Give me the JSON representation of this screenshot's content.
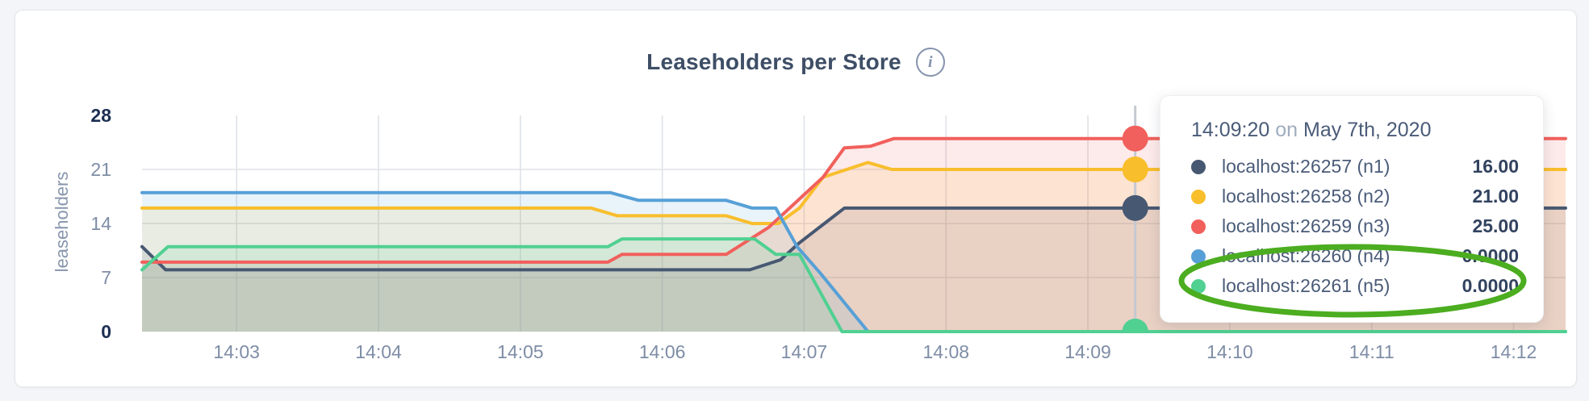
{
  "header": {
    "title": "Leaseholders per Store",
    "info_icon": "i"
  },
  "chart_data": {
    "type": "area",
    "title": "Leaseholders per Store",
    "xlabel": "",
    "ylabel": "leaseholders",
    "ylim": [
      0,
      28
    ],
    "y_ticks": [
      0,
      7,
      14,
      21,
      28
    ],
    "x_ticks": [
      "14:03",
      "14:04",
      "14:05",
      "14:06",
      "14:07",
      "14:08",
      "14:09",
      "14:10",
      "14:11",
      "14:12"
    ],
    "x_range": [
      "14:02:20",
      "14:12:22"
    ],
    "grid": true,
    "legend_position": "tooltip-right",
    "series": [
      {
        "name": "localhost:26257 (n1)",
        "short": "n1",
        "color": "#475872",
        "points": [
          [
            "14:02:20",
            11
          ],
          [
            "14:02:30",
            8
          ],
          [
            "14:06:37",
            8
          ],
          [
            "14:06:50",
            9.3
          ],
          [
            "14:06:58",
            11.5
          ],
          [
            "14:07:17",
            16
          ],
          [
            "14:12:22",
            16
          ]
        ]
      },
      {
        "name": "localhost:26258 (n2)",
        "short": "n2",
        "color": "#f8be2c",
        "points": [
          [
            "14:02:20",
            16
          ],
          [
            "14:05:30",
            16
          ],
          [
            "14:05:41",
            15
          ],
          [
            "14:06:27",
            15
          ],
          [
            "14:06:38",
            14
          ],
          [
            "14:06:49",
            14
          ],
          [
            "14:06:58",
            16
          ],
          [
            "14:07:08",
            20
          ],
          [
            "14:07:27",
            21.9
          ],
          [
            "14:07:37",
            21
          ],
          [
            "14:12:22",
            21
          ]
        ]
      },
      {
        "name": "localhost:26259 (n3)",
        "short": "n3",
        "color": "#f1605c",
        "points": [
          [
            "14:02:20",
            9
          ],
          [
            "14:05:37",
            9
          ],
          [
            "14:05:43",
            10
          ],
          [
            "14:06:27",
            10
          ],
          [
            "14:06:45",
            13.5
          ],
          [
            "14:07:08",
            20
          ],
          [
            "14:07:17",
            23.8
          ],
          [
            "14:07:28",
            24
          ],
          [
            "14:07:38",
            25
          ],
          [
            "14:12:22",
            25
          ]
        ]
      },
      {
        "name": "localhost:26260 (n4)",
        "short": "n4",
        "color": "#57a0d7",
        "points": [
          [
            "14:02:20",
            18
          ],
          [
            "14:05:38",
            18
          ],
          [
            "14:05:50",
            17
          ],
          [
            "14:06:27",
            17
          ],
          [
            "14:06:38",
            16
          ],
          [
            "14:06:48",
            16
          ],
          [
            "14:06:57",
            11
          ],
          [
            "14:07:07",
            7.5
          ],
          [
            "14:07:27",
            0
          ],
          [
            "14:12:22",
            0
          ]
        ]
      },
      {
        "name": "localhost:26261 (n5)",
        "short": "n5",
        "color": "#50d091",
        "points": [
          [
            "14:02:20",
            8
          ],
          [
            "14:02:31",
            11
          ],
          [
            "14:05:37",
            11
          ],
          [
            "14:05:43",
            12
          ],
          [
            "14:06:39",
            12
          ],
          [
            "14:06:48",
            10
          ],
          [
            "14:06:58",
            10
          ],
          [
            "14:07:16",
            0
          ],
          [
            "14:12:22",
            0
          ]
        ]
      }
    ],
    "hover": {
      "time": "14:09:20",
      "values": [
        16,
        21,
        25,
        0,
        0
      ]
    }
  },
  "tooltip": {
    "time": "14:09:20",
    "preposition": "on",
    "date": "May 7th, 2020",
    "rows": [
      {
        "name": "localhost:26257 (n1)",
        "value": "16.00",
        "color": "#475872",
        "circled": false
      },
      {
        "name": "localhost:26258 (n2)",
        "value": "21.00",
        "color": "#f8be2c",
        "circled": false
      },
      {
        "name": "localhost:26259 (n3)",
        "value": "25.00",
        "color": "#f1605c",
        "circled": false
      },
      {
        "name": "localhost:26260 (n4)",
        "value": "0.0000",
        "color": "#57a0d7",
        "circled": true
      },
      {
        "name": "localhost:26261 (n5)",
        "value": "0.0000",
        "color": "#50d091",
        "circled": true
      }
    ],
    "annotation_color": "#4bad1f"
  },
  "colors": {
    "grid": "#dfe2e7",
    "hover_line": "#c4c9d1",
    "tick_minor": "#7e8da6",
    "tick_bold": "#1c2f52",
    "title": "#3e4e66"
  }
}
